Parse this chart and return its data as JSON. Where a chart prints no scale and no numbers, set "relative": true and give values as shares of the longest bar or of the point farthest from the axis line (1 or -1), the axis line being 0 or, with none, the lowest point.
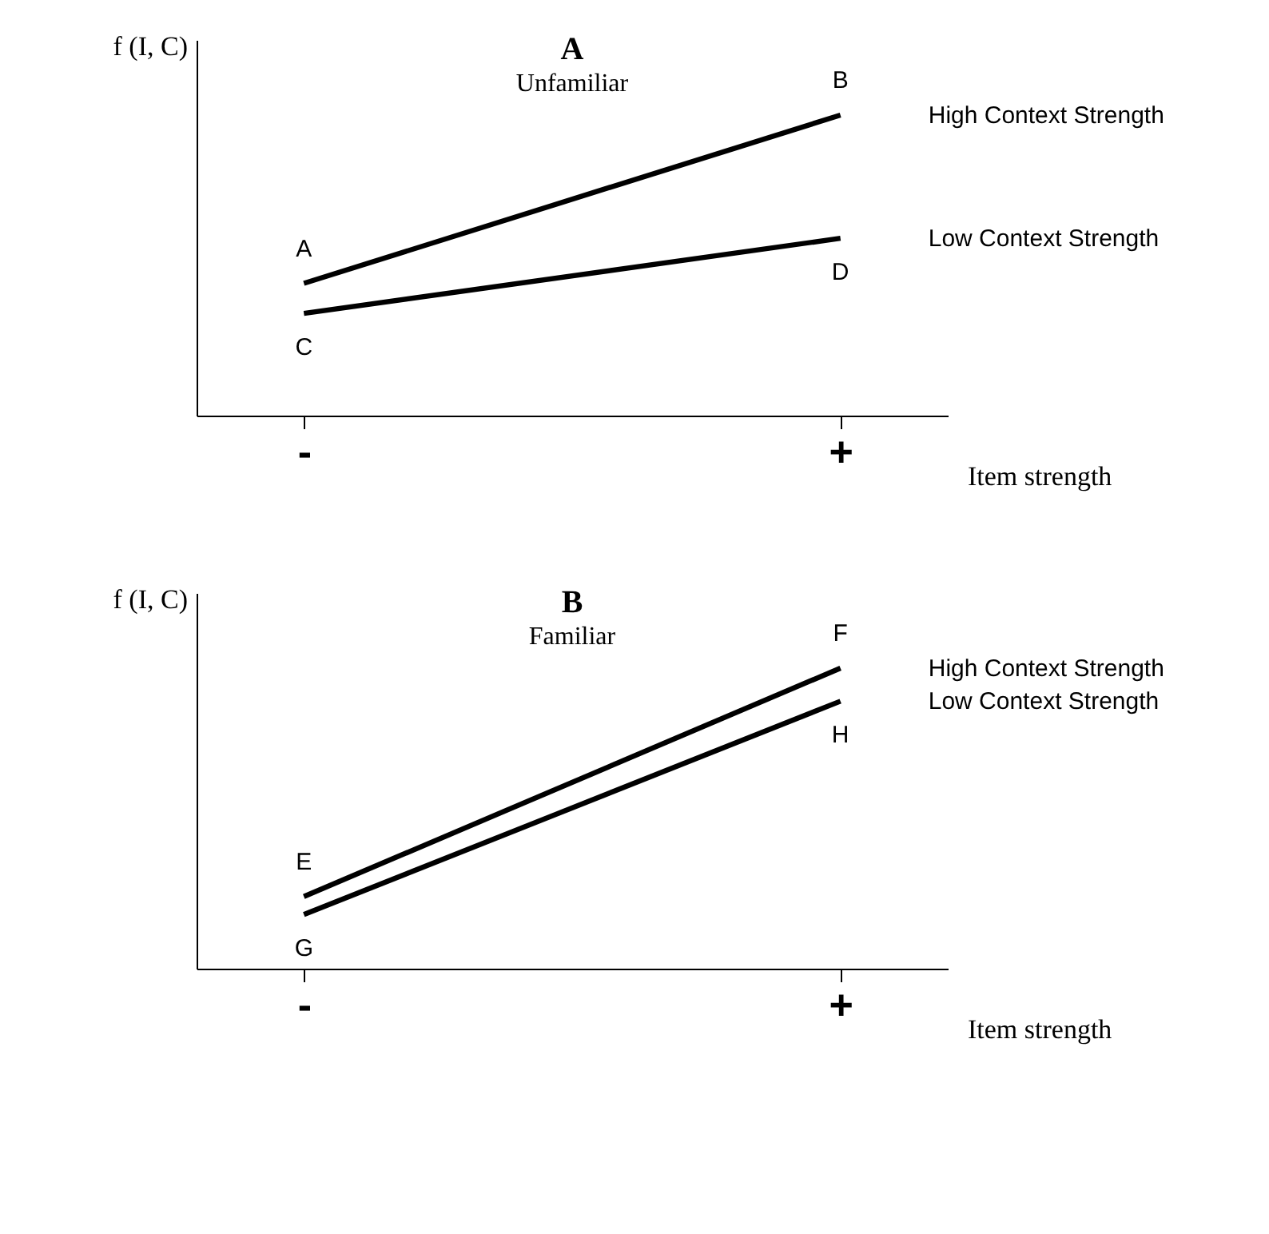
{
  "chart_data": [
    {
      "type": "line",
      "relative": true,
      "title": "A",
      "subtitle": "Unfamiliar",
      "ylabel": "f (I, C)",
      "xlabel": "Item strength",
      "categories": [
        "-",
        "+"
      ],
      "grid": false,
      "marker": "none",
      "line_style": "solid",
      "series": [
        {
          "name": "High Context Strength",
          "color": "#000000",
          "values": [
            0.44,
            1
          ]
        },
        {
          "name": "Low Context Strength",
          "color": "#000000",
          "values": [
            0.34,
            0.59
          ]
        }
      ],
      "annotations": [
        "A",
        "B",
        "C",
        "D"
      ]
    },
    {
      "type": "line",
      "relative": true,
      "title": "B",
      "subtitle": "Familiar",
      "ylabel": "f (I, C)",
      "xlabel": "Item strength",
      "categories": [
        "-",
        "+"
      ],
      "grid": false,
      "marker": "none",
      "line_style": "solid",
      "series": [
        {
          "name": "High Context Strength",
          "color": "#000000",
          "values": [
            0.24,
            1
          ]
        },
        {
          "name": "Low Context Strength",
          "color": "#000000",
          "values": [
            0.18,
            0.89
          ]
        }
      ],
      "annotations": [
        "E",
        "F",
        "G",
        "H"
      ]
    }
  ]
}
